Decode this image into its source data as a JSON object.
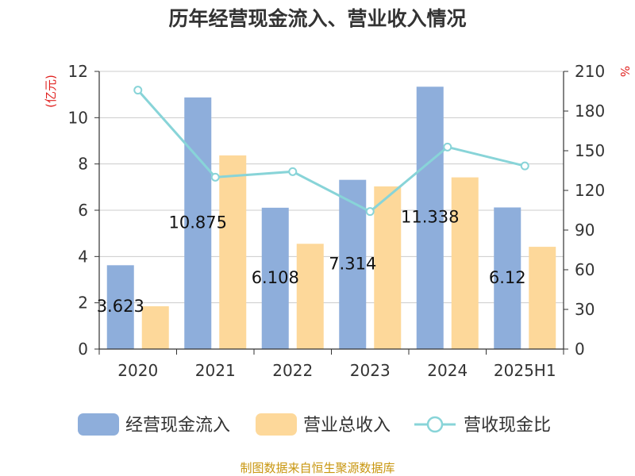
{
  "chart_data": {
    "type": "bar",
    "title": "历年经营现金流入、营业收入情况",
    "categories": [
      "2020",
      "2021",
      "2022",
      "2023",
      "2024",
      "2025H1"
    ],
    "y_left": {
      "unit": "(亿元)",
      "ylim": [
        0,
        12
      ],
      "ticks": [
        0,
        2,
        4,
        6,
        8,
        10,
        12
      ]
    },
    "y_right": {
      "unit": "%",
      "ylim": [
        0,
        210
      ],
      "ticks": [
        0,
        30,
        60,
        90,
        120,
        150,
        180,
        210
      ]
    },
    "series": [
      {
        "name": "经营现金流入",
        "type": "bar",
        "axis": "left",
        "color": "#8eaedb",
        "values": [
          3.623,
          10.875,
          6.108,
          7.314,
          11.338,
          6.12
        ],
        "labels": [
          "3.623",
          "10.875",
          "6.108",
          "7.314",
          "11.338",
          "6.12"
        ]
      },
      {
        "name": "营业总收入",
        "type": "bar",
        "axis": "left",
        "color": "#fdd89a",
        "values": [
          1.85,
          8.37,
          4.55,
          7.03,
          7.42,
          4.42
        ]
      },
      {
        "name": "营收现金比",
        "type": "line",
        "axis": "right",
        "color": "#88d4d8",
        "values": [
          195.8,
          130.0,
          134.2,
          104.0,
          152.8,
          138.5
        ]
      }
    ],
    "grid": true,
    "legend": "bottom"
  },
  "source": "制图数据来自恒生聚源数据库"
}
